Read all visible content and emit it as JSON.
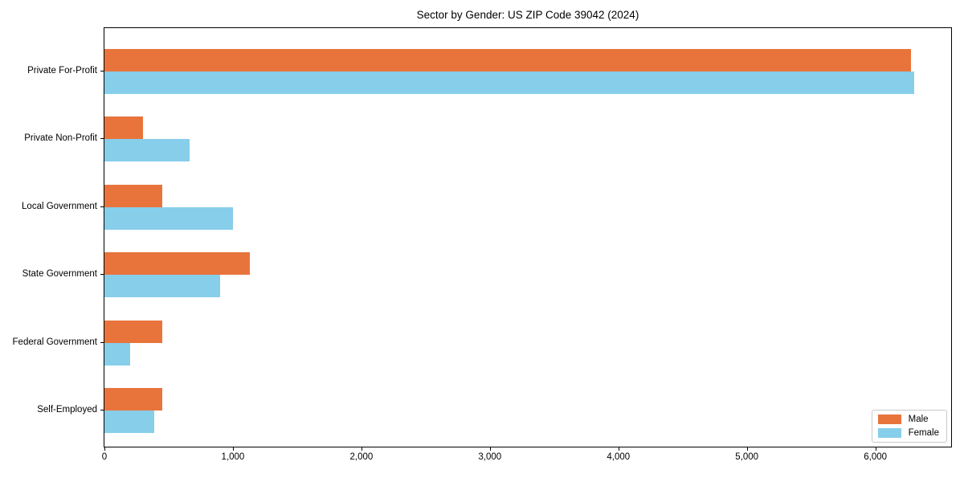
{
  "chart_data": {
    "type": "bar",
    "orientation": "horizontal",
    "title": "Sector by Gender: US ZIP Code 39042 (2024)",
    "categories": [
      "Private For-Profit",
      "Private Non-Profit",
      "Local Government",
      "State Government",
      "Federal Government",
      "Self-Employed"
    ],
    "series": [
      {
        "name": "Male",
        "color": "#e8743c",
        "values": [
          6280,
          300,
          450,
          1130,
          450,
          450
        ]
      },
      {
        "name": "Female",
        "color": "#87ceeb",
        "values": [
          6300,
          660,
          1000,
          900,
          200,
          390
        ]
      }
    ],
    "xlabel": "",
    "ylabel": "",
    "xlim": [
      0,
      6590
    ],
    "xticks": [
      0,
      1000,
      2000,
      3000,
      4000,
      5000,
      6000
    ],
    "xtick_labels": [
      "0",
      "1,000",
      "2,000",
      "3,000",
      "4,000",
      "5,000",
      "6,000"
    ],
    "grid": false,
    "legend_position": "lower right"
  }
}
